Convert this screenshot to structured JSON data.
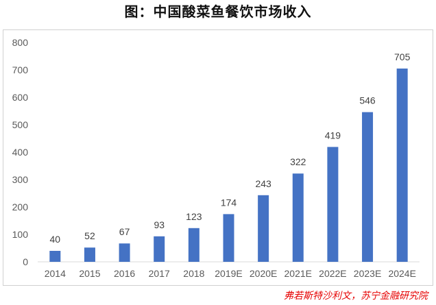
{
  "title": "图：中国酸菜鱼餐饮市场收入",
  "source": "弗若斯特沙利文，苏宁金融研究院",
  "chart_data": {
    "type": "bar",
    "categories": [
      "2014",
      "2015",
      "2016",
      "2017",
      "2018",
      "2019E",
      "2020E",
      "2021E",
      "2022E",
      "2023E",
      "2024E"
    ],
    "values": [
      40,
      52,
      67,
      93,
      123,
      174,
      243,
      322,
      419,
      546,
      705
    ],
    "data_labels": [
      "40",
      "52",
      "67",
      "93",
      "123",
      "174",
      "243",
      "322",
      "419",
      "546",
      "705"
    ],
    "y_ticks": [
      0,
      100,
      200,
      300,
      400,
      500,
      600,
      700,
      800
    ],
    "ylim": [
      0,
      800
    ],
    "bar_color": "#4472c4",
    "axis_color": "#d9d9d9",
    "grid": false,
    "legend": "none"
  }
}
